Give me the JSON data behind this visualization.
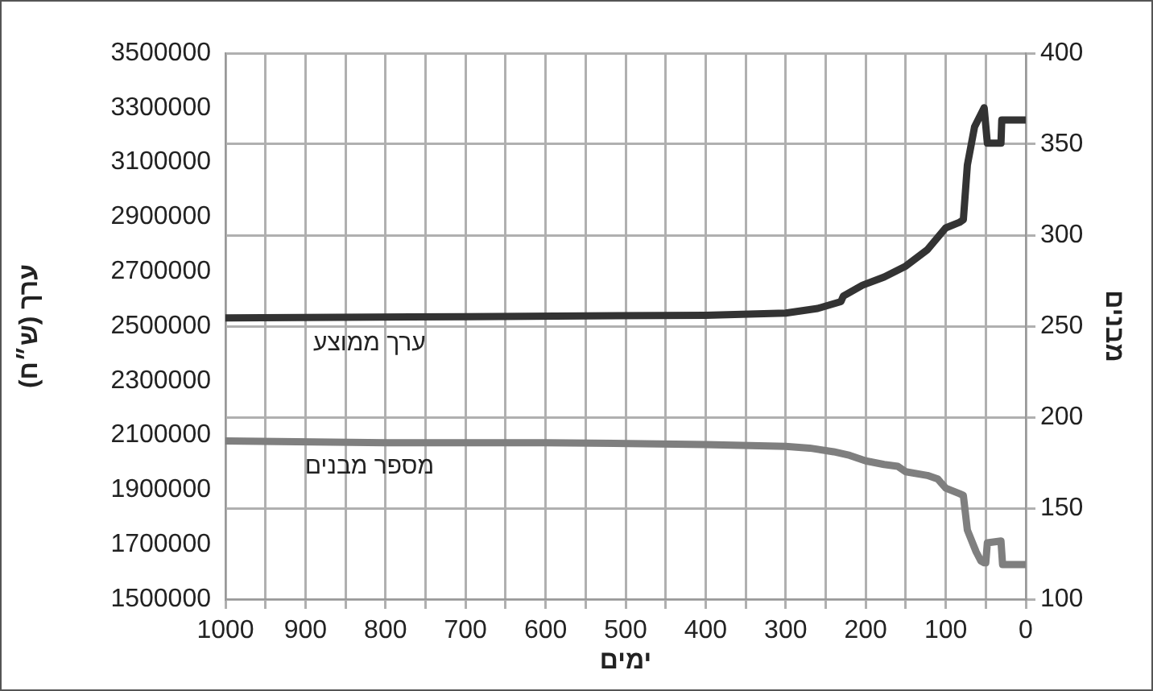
{
  "chart_data": {
    "type": "line",
    "xlabel": "ימים",
    "ylabel": "ערך (ש״ח)",
    "y2label": "מבנים",
    "xlim": [
      1000,
      0
    ],
    "xticks": [
      1000,
      {
        "value": 950,
        "label": null
      },
      900,
      {
        "value": 850,
        "label": null
      },
      800,
      {
        "value": 750,
        "label": null
      },
      700,
      {
        "value": 650,
        "label": null
      },
      600,
      {
        "value": 550,
        "label": null
      },
      500,
      {
        "value": 450,
        "label": null
      },
      400,
      {
        "value": 350,
        "label": null
      },
      300,
      {
        "value": 250,
        "label": null
      },
      200,
      {
        "value": 150,
        "label": null
      },
      100,
      {
        "value": 50,
        "label": null
      },
      0
    ],
    "ylim": [
      1500000,
      3500000
    ],
    "yticks": [
      1500000,
      1700000,
      1900000,
      2100000,
      2300000,
      2500000,
      2700000,
      2900000,
      3100000,
      3300000,
      3500000
    ],
    "y2lim": [
      100,
      400
    ],
    "y2ticks": [
      100,
      150,
      200,
      250,
      300,
      350,
      400
    ],
    "grid": "x,y2",
    "legend": false,
    "marker": "none",
    "line_style": "solid",
    "series": [
      {
        "name": "ערך ממוצע",
        "color": "#333333",
        "axis": "y",
        "x": [
          1000,
          700,
          400,
          300,
          260,
          231,
          228,
          204,
          177,
          150,
          123,
          100,
          83,
          78,
          73,
          64,
          52,
          48,
          31,
          30,
          0
        ],
        "values": [
          2530000,
          2535000,
          2540000,
          2548000,
          2565000,
          2590000,
          2610000,
          2650000,
          2680000,
          2720000,
          2780000,
          2860000,
          2880000,
          2890000,
          3090000,
          3230000,
          3300000,
          3170000,
          3170000,
          3255000,
          3255000
        ]
      },
      {
        "name": "מספר מבנים",
        "color": "#7f7f7f",
        "axis": "y2",
        "x": [
          1000,
          800,
          600,
          400,
          300,
          270,
          240,
          220,
          200,
          177,
          160,
          150,
          123,
          110,
          100,
          83,
          78,
          73,
          62,
          56,
          52,
          50,
          48,
          31,
          29,
          0
        ],
        "values": [
          187,
          186,
          186,
          185,
          184,
          183,
          181,
          179,
          176,
          174,
          173,
          170,
          168,
          166,
          161,
          158,
          157,
          138,
          126,
          121,
          120,
          120,
          131,
          132,
          119,
          119
        ]
      }
    ]
  }
}
